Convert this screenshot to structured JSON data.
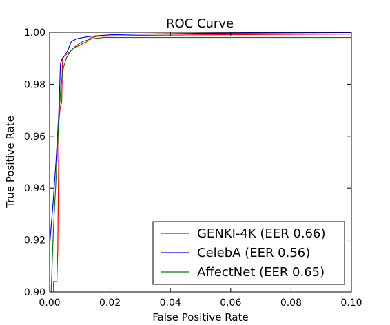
{
  "chart_data": {
    "type": "line",
    "title": "ROC Curve",
    "xlabel": "False Positive Rate",
    "ylabel": "True Positive Rate",
    "xlim": [
      0.0,
      0.1
    ],
    "ylim": [
      0.9,
      1.0
    ],
    "xticks": [
      0.0,
      0.02,
      0.04,
      0.06,
      0.08,
      0.1
    ],
    "xtick_labels": [
      "0.00",
      "0.02",
      "0.04",
      "0.06",
      "0.08",
      "0.10"
    ],
    "yticks": [
      0.9,
      0.92,
      0.94,
      0.96,
      0.98,
      1.0
    ],
    "ytick_labels": [
      "0.90",
      "0.92",
      "0.94",
      "0.96",
      "0.98",
      "1.00"
    ],
    "grid": false,
    "legend_position": "lower-right",
    "series": [
      {
        "name": "GENKI-4K (EER 0.66)",
        "color": "#ff0000",
        "x": [
          0.0013,
          0.0013,
          0.0024,
          0.0027,
          0.0031,
          0.0035,
          0.004,
          0.0042,
          0.0043,
          0.005,
          0.0062,
          0.008,
          0.01,
          0.0115,
          0.012,
          0.013,
          0.014,
          0.016,
          0.02,
          0.03,
          0.05,
          0.08,
          0.1
        ],
        "y": [
          0.9,
          0.904,
          0.904,
          0.916,
          0.966,
          0.971,
          0.973,
          0.985,
          0.99,
          0.991,
          0.992,
          0.994,
          0.995,
          0.996,
          0.996,
          0.9975,
          0.998,
          0.9985,
          0.9985,
          0.9988,
          0.999,
          0.9992,
          0.9993
        ]
      },
      {
        "name": "CelebA (EER 0.56)",
        "color": "#0000ff",
        "x": [
          0.0,
          0.0012,
          0.0021,
          0.003,
          0.0036,
          0.0042,
          0.005,
          0.006,
          0.0072,
          0.009,
          0.011,
          0.014,
          0.02,
          0.03,
          0.05,
          0.08,
          0.1
        ],
        "y": [
          0.918,
          0.935,
          0.95,
          0.968,
          0.988,
          0.99,
          0.991,
          0.993,
          0.9965,
          0.9975,
          0.998,
          0.9985,
          0.999,
          0.9993,
          0.9996,
          0.9998,
          0.9999
        ]
      },
      {
        "name": "AffectNet (EER 0.65)",
        "color": "#008000",
        "x": [
          0.0005,
          0.0013,
          0.0022,
          0.003,
          0.0037,
          0.0045,
          0.0055,
          0.007,
          0.009,
          0.011,
          0.014,
          0.018,
          0.025,
          0.04,
          0.06,
          0.08,
          0.1
        ],
        "y": [
          0.9,
          0.925,
          0.945,
          0.966,
          0.979,
          0.986,
          0.99,
          0.993,
          0.995,
          0.9965,
          0.9975,
          0.998,
          0.998,
          0.998,
          0.998,
          0.998,
          0.998
        ]
      }
    ]
  }
}
